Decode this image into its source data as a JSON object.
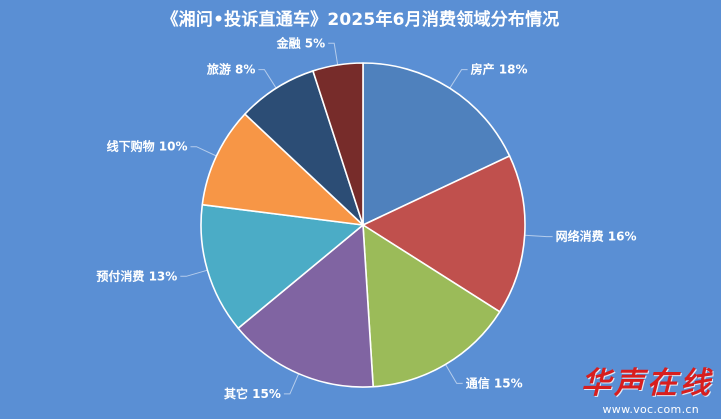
{
  "chart_data": {
    "type": "pie",
    "title": "《湘问•投诉直通车》2025年6月消费领域分布情况",
    "categories": [
      "房产",
      "网络消费",
      "通信",
      "其它",
      "预付消费",
      "线下购物",
      "旅游",
      "金融"
    ],
    "values": [
      18,
      16,
      15,
      15,
      13,
      10,
      8,
      5
    ],
    "unit": "%",
    "colors": [
      "#4f81bd",
      "#c0504d",
      "#9bbb59",
      "#8064a2",
      "#4bacc6",
      "#f79646",
      "#2c4d75",
      "#772c2a"
    ],
    "start_angle": "12 o'clock, clockwise",
    "legend": "none"
  },
  "watermark": {
    "brand": "华声在线",
    "url": "www.voc.com.cn",
    "color": "#d81e1e"
  }
}
